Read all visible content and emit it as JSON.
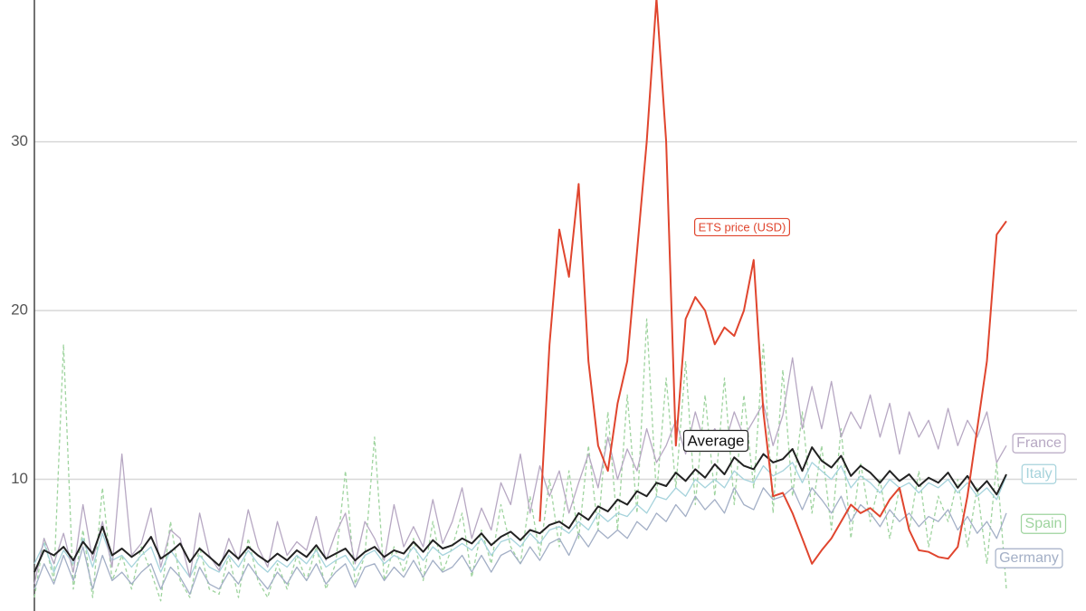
{
  "chart_data": {
    "type": "line",
    "ylim": [
      2.2,
      38.4
    ],
    "yticks": [
      10,
      20,
      30
    ],
    "grid": true,
    "series": [
      {
        "name": "Spain",
        "color": "#9fd49f",
        "style": "dashed",
        "values": [
          3,
          6.5,
          4,
          18,
          3.5,
          7,
          3,
          9.5,
          4,
          5.5,
          3.5,
          6,
          4.5,
          2.8,
          7.5,
          4,
          3,
          6,
          3.5,
          3.2,
          5.5,
          3,
          6.5,
          4,
          3,
          5,
          3.5,
          5.5,
          4,
          6,
          3.5,
          5,
          10.5,
          3.8,
          5.5,
          12.5,
          4,
          6,
          4.5,
          6.5,
          4,
          7.5,
          4.5,
          6,
          8,
          4.2,
          7,
          5,
          8.5,
          6,
          5,
          9,
          5.5,
          10,
          6,
          10.5,
          6.5,
          12,
          7,
          14,
          7,
          15,
          8,
          19.5,
          9,
          16,
          9.5,
          17,
          8.5,
          15,
          9,
          16,
          8.5,
          15,
          9.5,
          18,
          8,
          16.5,
          9,
          14,
          8,
          12,
          7,
          13,
          6.5,
          11,
          7.5,
          10,
          6.5,
          9.5,
          7,
          10.5,
          6,
          9,
          7.5,
          10,
          6,
          9.5,
          5,
          11,
          3.5
        ]
      },
      {
        "name": "Germany",
        "color": "#a3afc6",
        "style": "solid",
        "values": [
          3.5,
          5,
          3.8,
          5.5,
          4,
          6,
          3.5,
          5.5,
          4,
          4.5,
          3.8,
          4.5,
          5,
          3.5,
          4.8,
          4.2,
          3.2,
          4.8,
          3.8,
          3.5,
          4.5,
          3.8,
          5,
          4.2,
          3.5,
          4.5,
          3.8,
          4.8,
          4,
          5,
          3.8,
          4.5,
          5,
          3.6,
          4.8,
          5,
          4,
          4.8,
          4.2,
          5.2,
          4.2,
          5.2,
          4.5,
          4.8,
          5.5,
          4.5,
          5.5,
          4.5,
          5.5,
          5.8,
          5,
          6,
          5.2,
          6.2,
          6.5,
          5.5,
          6.8,
          6,
          7,
          6.5,
          7,
          6.5,
          7.5,
          7,
          8,
          7.5,
          8.5,
          7.8,
          9,
          8.2,
          8.8,
          8,
          9.5,
          8.5,
          8.2,
          9.5,
          8.8,
          9,
          9.5,
          8.2,
          9.5,
          8.8,
          8,
          9,
          7.5,
          8.5,
          8,
          7.2,
          8.2,
          7.5,
          8,
          7.2,
          7.8,
          7.5,
          8.2,
          7,
          7.8,
          6.8,
          7.5,
          6.5,
          8
        ]
      },
      {
        "name": "Italy",
        "color": "#a6d3dc",
        "style": "solid",
        "values": [
          5,
          6.2,
          4.5,
          5.8,
          5,
          6.5,
          4.8,
          6.8,
          5.2,
          5.5,
          4.8,
          5.5,
          6,
          4.5,
          5.8,
          5,
          4.2,
          5.5,
          4.8,
          4.5,
          5.5,
          4.8,
          5.8,
          5,
          4.5,
          5.2,
          4.8,
          5.5,
          5,
          5.8,
          4.8,
          5.2,
          5.5,
          4.6,
          5.5,
          5.8,
          5,
          5.5,
          5.2,
          6,
          5.2,
          6,
          5.5,
          5.8,
          6.2,
          5.8,
          6.5,
          5.5,
          6.3,
          6.5,
          6,
          6.8,
          6.2,
          7,
          7.2,
          6.8,
          7.5,
          7,
          8,
          7.5,
          8,
          7.8,
          8.5,
          8,
          9,
          8.8,
          9.5,
          9,
          10,
          9.5,
          10,
          9.5,
          10.5,
          10,
          9.8,
          10.8,
          10.2,
          10.5,
          11,
          9.8,
          11,
          10.5,
          10,
          10.8,
          9.5,
          10.2,
          9.8,
          9.2,
          10,
          9.5,
          9.8,
          9.2,
          9.8,
          9.5,
          10,
          9.2,
          9.8,
          9,
          9.5,
          8.8,
          10.2
        ]
      },
      {
        "name": "France",
        "color": "#b7a8c3",
        "style": "solid",
        "values": [
          3.8,
          6.5,
          5,
          6.8,
          4.5,
          8.5,
          5.2,
          7.5,
          4.8,
          11.5,
          5.5,
          6.2,
          8.3,
          4.8,
          7,
          6.5,
          4.2,
          8,
          5.5,
          4.6,
          6.5,
          5.2,
          8.2,
          6,
          4.8,
          7.5,
          5.5,
          6.3,
          5.8,
          7.8,
          5.2,
          6.8,
          8,
          5,
          7.5,
          6.5,
          5.2,
          8.5,
          6,
          7.2,
          6,
          8.8,
          6.2,
          7.5,
          9.5,
          6.5,
          8.3,
          7,
          9.8,
          8.5,
          11.5,
          8,
          10.8,
          9,
          10.5,
          8,
          9.8,
          11.5,
          9.5,
          12.5,
          10,
          11.8,
          10.5,
          13,
          11,
          12,
          13.5,
          11.5,
          14,
          12,
          13,
          12,
          14,
          12.5,
          13.5,
          14.5,
          12,
          13.8,
          17.2,
          13,
          15.5,
          13,
          15.8,
          12.5,
          14,
          13,
          15,
          12.5,
          14.5,
          11.5,
          14,
          12.5,
          13.5,
          11.8,
          14.2,
          12,
          13.5,
          12.5,
          14,
          11,
          12
        ]
      },
      {
        "name": "Average",
        "color": "#222222",
        "style": "solid",
        "values": [
          4.5,
          5.8,
          5.5,
          6,
          5.2,
          6.3,
          5.6,
          7.2,
          5.5,
          5.9,
          5.4,
          5.8,
          6.6,
          5.3,
          5.7,
          6.2,
          5.1,
          5.9,
          5.4,
          4.9,
          5.8,
          5.3,
          6,
          5.5,
          5.1,
          5.6,
          5.2,
          5.8,
          5.4,
          6.1,
          5.3,
          5.6,
          5.9,
          5.2,
          5.7,
          6,
          5.4,
          5.8,
          5.6,
          6.3,
          5.7,
          6.4,
          5.9,
          6.1,
          6.5,
          6.2,
          6.8,
          6.1,
          6.6,
          6.9,
          6.4,
          7,
          6.8,
          7.3,
          7.5,
          7.1,
          8,
          7.6,
          8.4,
          8.1,
          8.8,
          8.5,
          9.3,
          9,
          9.8,
          9.6,
          10.4,
          9.9,
          10.6,
          10.1,
          10.9,
          10.3,
          11.3,
          10.8,
          10.6,
          11.5,
          11,
          11.2,
          11.8,
          10.5,
          11.9,
          11.1,
          10.7,
          11.4,
          10.2,
          10.8,
          10.4,
          9.8,
          10.5,
          9.9,
          10.3,
          9.6,
          10.1,
          9.8,
          10.4,
          9.5,
          10.2,
          9.3,
          9.9,
          9.1,
          10.3
        ]
      },
      {
        "name": "ETS price (USD)",
        "color": "#e0452e",
        "style": "solid",
        "values": [
          null,
          null,
          null,
          null,
          null,
          null,
          null,
          null,
          null,
          null,
          null,
          null,
          null,
          null,
          null,
          null,
          null,
          null,
          null,
          null,
          null,
          null,
          null,
          null,
          null,
          null,
          null,
          null,
          null,
          null,
          null,
          null,
          null,
          null,
          null,
          null,
          null,
          null,
          null,
          null,
          null,
          null,
          null,
          null,
          null,
          null,
          null,
          null,
          null,
          null,
          null,
          null,
          7.5,
          18,
          24.8,
          22,
          27.5,
          17,
          12,
          10.5,
          14.5,
          17,
          23.5,
          30,
          38.5,
          30,
          12,
          19.5,
          20.8,
          20,
          18,
          19,
          18.5,
          20,
          23,
          14,
          9,
          9.2,
          8,
          6.5,
          5,
          5.8,
          6.5,
          7.5,
          8.5,
          8,
          8.3,
          7.8,
          8.8,
          9.5,
          7,
          5.8,
          5.7,
          5.4,
          5.3,
          6,
          9,
          13,
          17,
          24.5,
          25.3
        ]
      }
    ]
  }
}
